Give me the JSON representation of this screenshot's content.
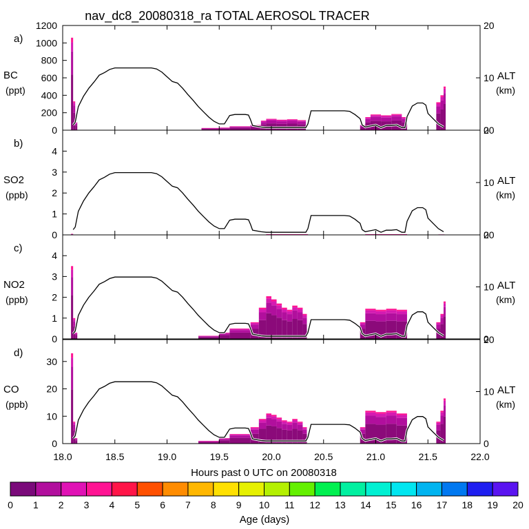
{
  "chart_data": {
    "type": "area",
    "title": "nav_dc8_20080318_ra TOTAL AEROSOL TRACER",
    "xlabel": "Hours past 0 UTC on 20080318",
    "xlim": [
      18.0,
      22.0
    ],
    "x_ticks": [
      "18.0",
      "18.5",
      "19.0",
      "19.5",
      "20.0",
      "20.5",
      "21.0",
      "21.5",
      "22.0"
    ],
    "right_axis": {
      "label": "ALT",
      "unit": "(km)",
      "ylim": [
        0,
        20
      ],
      "ticks": [
        "0",
        "10",
        "20"
      ]
    },
    "altitude_km": {
      "x": [
        18.1,
        18.12,
        18.15,
        18.2,
        18.25,
        18.3,
        18.35,
        18.4,
        18.45,
        18.5,
        18.55,
        18.6,
        18.65,
        18.7,
        18.75,
        18.8,
        18.85,
        18.9,
        18.95,
        19.0,
        19.05,
        19.1,
        19.15,
        19.2,
        19.25,
        19.3,
        19.35,
        19.4,
        19.45,
        19.5,
        19.55,
        19.6,
        19.65,
        19.7,
        19.75,
        19.78,
        19.8,
        19.82,
        19.9,
        19.95,
        20.0,
        20.05,
        20.1,
        20.2,
        20.25,
        20.3,
        20.33,
        20.35,
        20.38,
        20.4,
        20.45,
        20.5,
        20.55,
        20.6,
        20.65,
        20.7,
        20.75,
        20.8,
        20.85,
        20.87,
        20.9,
        20.95,
        21.0,
        21.05,
        21.1,
        21.15,
        21.2,
        21.25,
        21.28,
        21.3,
        21.35,
        21.4,
        21.45,
        21.48,
        21.5,
        21.55,
        21.6,
        21.65
      ],
      "y": [
        1.0,
        1.5,
        4.5,
        6.5,
        8.0,
        9.2,
        10.5,
        11.0,
        11.6,
        11.9,
        11.9,
        11.9,
        11.9,
        11.9,
        11.9,
        11.9,
        11.9,
        11.7,
        11.1,
        10.2,
        9.3,
        9.0,
        8.0,
        6.8,
        5.7,
        4.5,
        3.5,
        2.5,
        1.7,
        1.2,
        1.2,
        2.8,
        3.0,
        3.0,
        3.0,
        2.9,
        2.0,
        0.9,
        0.6,
        0.5,
        0.5,
        0.5,
        0.5,
        0.5,
        0.5,
        0.5,
        0.5,
        1.2,
        3.7,
        3.7,
        3.7,
        3.7,
        3.7,
        3.7,
        3.7,
        3.7,
        3.6,
        3.0,
        2.2,
        1.0,
        0.6,
        0.8,
        1.0,
        0.5,
        0.9,
        0.9,
        1.0,
        0.5,
        0.5,
        2.6,
        4.6,
        5.2,
        5.2,
        4.8,
        3.2,
        2.2,
        1.2,
        0.6
      ]
    },
    "panels": [
      {
        "letter": "a)",
        "species": "BC",
        "unit": "(ppt)",
        "ylim": [
          0,
          1200
        ],
        "y_ticks": [
          "0",
          "200",
          "400",
          "600",
          "800",
          "1000",
          "1200"
        ],
        "altitude_scale_max": 20,
        "bins": [
          {
            "x0": 18.08,
            "x1": 18.1,
            "total": 1060
          },
          {
            "x0": 18.1,
            "x1": 18.12,
            "total": 330
          },
          {
            "x0": 18.12,
            "x1": 18.14,
            "total": 90
          },
          {
            "x0": 19.33,
            "x1": 19.5,
            "total": 25
          },
          {
            "x0": 19.5,
            "x1": 19.6,
            "total": 30
          },
          {
            "x0": 19.6,
            "x1": 19.8,
            "total": 45
          },
          {
            "x0": 19.8,
            "x1": 19.9,
            "total": 60
          },
          {
            "x0": 19.9,
            "x1": 19.95,
            "total": 110
          },
          {
            "x0": 19.95,
            "x1": 20.05,
            "total": 130
          },
          {
            "x0": 20.05,
            "x1": 20.15,
            "total": 120
          },
          {
            "x0": 20.15,
            "x1": 20.25,
            "total": 125
          },
          {
            "x0": 20.25,
            "x1": 20.33,
            "total": 115
          },
          {
            "x0": 20.85,
            "x1": 20.9,
            "total": 60
          },
          {
            "x0": 20.9,
            "x1": 20.95,
            "total": 150
          },
          {
            "x0": 20.95,
            "x1": 21.05,
            "total": 180
          },
          {
            "x0": 21.05,
            "x1": 21.15,
            "total": 170
          },
          {
            "x0": 21.15,
            "x1": 21.25,
            "total": 185
          },
          {
            "x0": 21.25,
            "x1": 21.3,
            "total": 150
          },
          {
            "x0": 21.58,
            "x1": 21.62,
            "total": 320
          },
          {
            "x0": 21.62,
            "x1": 21.65,
            "total": 400
          },
          {
            "x0": 21.65,
            "x1": 21.67,
            "total": 500
          }
        ]
      },
      {
        "letter": "b)",
        "species": "SO2",
        "unit": "(ppb)",
        "ylim": [
          0,
          5
        ],
        "y_ticks": [
          "0",
          "1",
          "2",
          "3",
          "4"
        ],
        "altitude_scale_max": 20,
        "bins": [
          {
            "x0": 18.08,
            "x1": 18.1,
            "total": 0.05
          },
          {
            "x0": 19.95,
            "x1": 20.35,
            "total": 0.03
          },
          {
            "x0": 20.9,
            "x1": 21.3,
            "total": 0.03
          },
          {
            "x0": 21.6,
            "x1": 21.66,
            "total": 0.02
          }
        ]
      },
      {
        "letter": "c)",
        "species": "NO2",
        "unit": "(ppb)",
        "ylim": [
          0,
          5
        ],
        "y_ticks": [
          "0",
          "1",
          "2",
          "3",
          "4"
        ],
        "altitude_scale_max": 20,
        "bins": [
          {
            "x0": 18.08,
            "x1": 18.1,
            "total": 3.5
          },
          {
            "x0": 18.1,
            "x1": 18.12,
            "total": 1.0
          },
          {
            "x0": 18.12,
            "x1": 18.14,
            "total": 0.3
          },
          {
            "x0": 19.3,
            "x1": 19.5,
            "total": 0.15
          },
          {
            "x0": 19.5,
            "x1": 19.6,
            "total": 0.3
          },
          {
            "x0": 19.6,
            "x1": 19.8,
            "total": 0.5
          },
          {
            "x0": 19.8,
            "x1": 19.88,
            "total": 0.8
          },
          {
            "x0": 19.88,
            "x1": 19.95,
            "total": 1.5
          },
          {
            "x0": 19.95,
            "x1": 20.0,
            "total": 2.05
          },
          {
            "x0": 20.0,
            "x1": 20.05,
            "total": 1.9
          },
          {
            "x0": 20.05,
            "x1": 20.1,
            "total": 1.7
          },
          {
            "x0": 20.1,
            "x1": 20.15,
            "total": 1.5
          },
          {
            "x0": 20.15,
            "x1": 20.2,
            "total": 1.4
          },
          {
            "x0": 20.2,
            "x1": 20.25,
            "total": 1.6
          },
          {
            "x0": 20.25,
            "x1": 20.3,
            "total": 1.5
          },
          {
            "x0": 20.3,
            "x1": 20.34,
            "total": 1.2
          },
          {
            "x0": 20.85,
            "x1": 20.9,
            "total": 0.8
          },
          {
            "x0": 20.9,
            "x1": 21.0,
            "total": 1.45
          },
          {
            "x0": 21.0,
            "x1": 21.1,
            "total": 1.4
          },
          {
            "x0": 21.1,
            "x1": 21.2,
            "total": 1.45
          },
          {
            "x0": 21.2,
            "x1": 21.3,
            "total": 1.4
          },
          {
            "x0": 21.58,
            "x1": 21.62,
            "total": 0.8
          },
          {
            "x0": 21.62,
            "x1": 21.65,
            "total": 1.2
          },
          {
            "x0": 21.65,
            "x1": 21.67,
            "total": 1.8
          }
        ]
      },
      {
        "letter": "d)",
        "species": "CO",
        "unit": "(ppb)",
        "ylim": [
          0,
          38
        ],
        "y_ticks": [
          "0",
          "10",
          "20",
          "30"
        ],
        "altitude_scale_max": 20,
        "bins": [
          {
            "x0": 18.08,
            "x1": 18.1,
            "total": 33
          },
          {
            "x0": 18.1,
            "x1": 18.12,
            "total": 8
          },
          {
            "x0": 18.12,
            "x1": 18.14,
            "total": 2
          },
          {
            "x0": 19.3,
            "x1": 19.5,
            "total": 1.0
          },
          {
            "x0": 19.5,
            "x1": 19.6,
            "total": 2.0
          },
          {
            "x0": 19.6,
            "x1": 19.8,
            "total": 3.5
          },
          {
            "x0": 19.8,
            "x1": 19.88,
            "total": 6
          },
          {
            "x0": 19.88,
            "x1": 19.95,
            "total": 9
          },
          {
            "x0": 19.95,
            "x1": 20.0,
            "total": 11
          },
          {
            "x0": 20.0,
            "x1": 20.05,
            "total": 10.5
          },
          {
            "x0": 20.05,
            "x1": 20.1,
            "total": 9.5
          },
          {
            "x0": 20.1,
            "x1": 20.15,
            "total": 8.5
          },
          {
            "x0": 20.15,
            "x1": 20.2,
            "total": 8
          },
          {
            "x0": 20.2,
            "x1": 20.25,
            "total": 9
          },
          {
            "x0": 20.25,
            "x1": 20.3,
            "total": 8
          },
          {
            "x0": 20.3,
            "x1": 20.34,
            "total": 6
          },
          {
            "x0": 20.85,
            "x1": 20.9,
            "total": 6
          },
          {
            "x0": 20.9,
            "x1": 21.0,
            "total": 12
          },
          {
            "x0": 21.0,
            "x1": 21.1,
            "total": 11.5
          },
          {
            "x0": 21.1,
            "x1": 21.2,
            "total": 12
          },
          {
            "x0": 21.2,
            "x1": 21.3,
            "total": 11
          },
          {
            "x0": 21.58,
            "x1": 21.62,
            "total": 8
          },
          {
            "x0": 21.62,
            "x1": 21.65,
            "total": 12
          },
          {
            "x0": 21.65,
            "x1": 21.67,
            "total": 16.5
          }
        ]
      }
    ],
    "stack_fractions": [
      0.6,
      0.25,
      0.1,
      0.05
    ],
    "stack_colors": [
      "#8b0a7a",
      "#b10f9d",
      "#d51ab2",
      "#ff1493"
    ],
    "altitude_line_color": "#000000",
    "colorbar": {
      "label": "Age (days)",
      "tick_labels": [
        "0",
        "1",
        "2",
        "3",
        "4",
        "5",
        "6",
        "7",
        "8",
        "9",
        "10",
        "11",
        "12",
        "13",
        "14",
        "15",
        "16",
        "17",
        "18",
        "19",
        "20"
      ],
      "colors": [
        "#7a0a7a",
        "#b10f9d",
        "#e012b5",
        "#ff1493",
        "#ff1548",
        "#ff5000",
        "#ff8c00",
        "#ffb700",
        "#ffe000",
        "#e6f000",
        "#b4f000",
        "#64f000",
        "#00f050",
        "#00f0a0",
        "#00f0d2",
        "#00e6f0",
        "#00b4f0",
        "#0078f0",
        "#1e1ef0",
        "#5a14f0"
      ]
    }
  }
}
